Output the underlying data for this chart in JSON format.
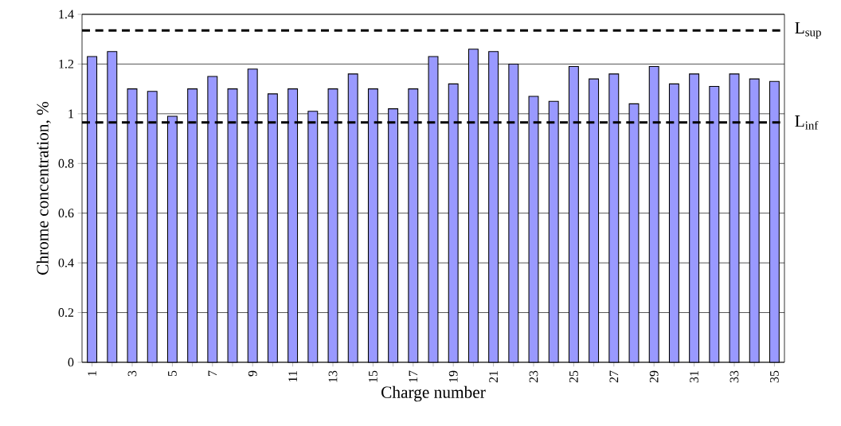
{
  "chart_data": {
    "type": "bar",
    "xlabel": "Charge number",
    "ylabel": "Chrome concentration, %",
    "categories": [
      "1",
      null,
      "3",
      null,
      "5",
      null,
      "7",
      null,
      "9",
      null,
      "11",
      null,
      "13",
      null,
      "15",
      null,
      "17",
      null,
      "19",
      null,
      "21",
      null,
      "23",
      null,
      "25",
      null,
      "27",
      null,
      "29",
      null,
      "31",
      null,
      "33",
      null,
      "35"
    ],
    "values": [
      1.23,
      1.25,
      1.1,
      1.09,
      0.99,
      1.1,
      1.15,
      1.1,
      1.18,
      1.08,
      1.1,
      1.01,
      1.1,
      1.16,
      1.1,
      1.02,
      1.1,
      1.23,
      1.12,
      1.26,
      1.25,
      1.2,
      1.07,
      1.05,
      1.19,
      1.14,
      1.16,
      1.04,
      1.19,
      1.12,
      1.16,
      1.11,
      1.16,
      1.14,
      1.13
    ],
    "color": "#9999ff",
    "ylim": [
      0,
      1.4
    ],
    "yticks": [
      0,
      0.2,
      0.4,
      0.6,
      0.8,
      1,
      1.2,
      1.4
    ],
    "grid": "y",
    "ref_lines": [
      {
        "axis": "y",
        "value": 1.335,
        "label": "L$_{sup}$",
        "color": "#000000",
        "line_style": "dashed"
      },
      {
        "axis": "y",
        "value": 0.965,
        "label": "L$_{inf}$",
        "color": "#000000",
        "line_style": "dashed"
      }
    ]
  }
}
